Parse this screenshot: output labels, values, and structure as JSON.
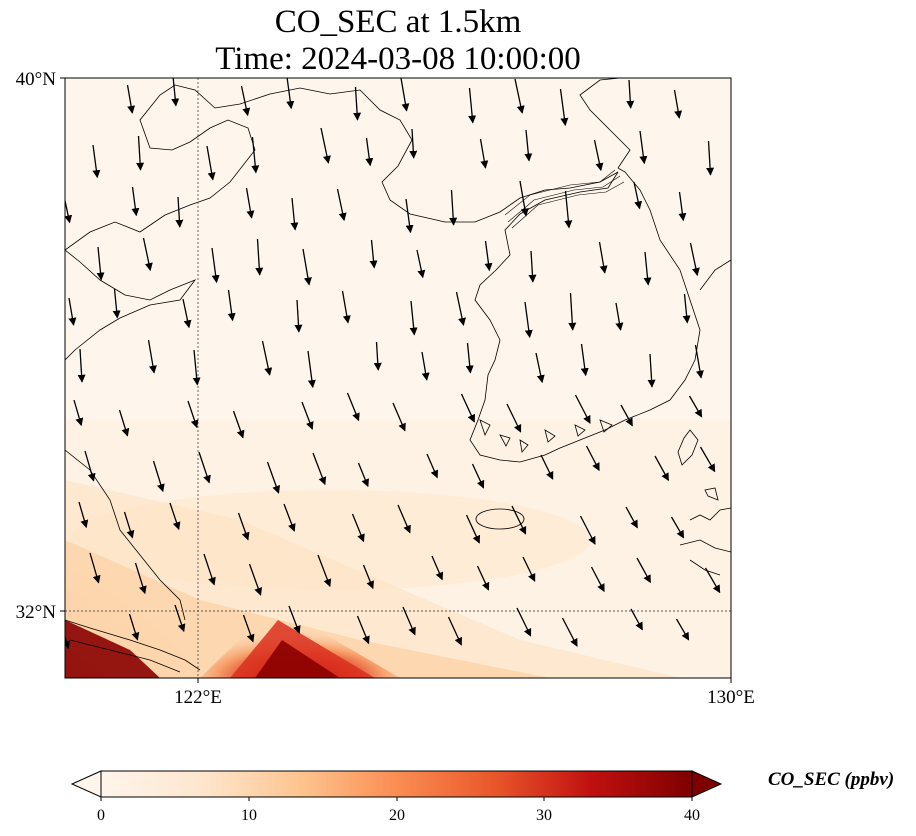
{
  "title": {
    "line1": "CO_SEC at 1.5km",
    "line2": "Time: 2024-03-08 10:00:00"
  },
  "map": {
    "extent": {
      "lon_min": 120,
      "lon_max": 130,
      "lat_min": 31,
      "lat_max": 40
    },
    "gridlines": {
      "lon": [
        122
      ],
      "lat": [
        32
      ],
      "style": "dotted"
    },
    "lat_labels": [
      "40°N",
      "32°N"
    ],
    "lon_labels": [
      "122°E",
      "130°E"
    ],
    "field": "CO_SEC concentration (shaded)",
    "vectors": "wind arrows, predominantly north-northwesterly"
  },
  "colorbar": {
    "label": "CO_SEC (ppbv)",
    "ticks": [
      "0",
      "10",
      "20",
      "30",
      "40"
    ],
    "min": 0,
    "max": 40,
    "extend": "both",
    "colormap": [
      "#fff5eb",
      "#fdd8b3",
      "#fdb57e",
      "#f68d5c",
      "#e34a33",
      "#c01010",
      "#7f0000"
    ]
  }
}
